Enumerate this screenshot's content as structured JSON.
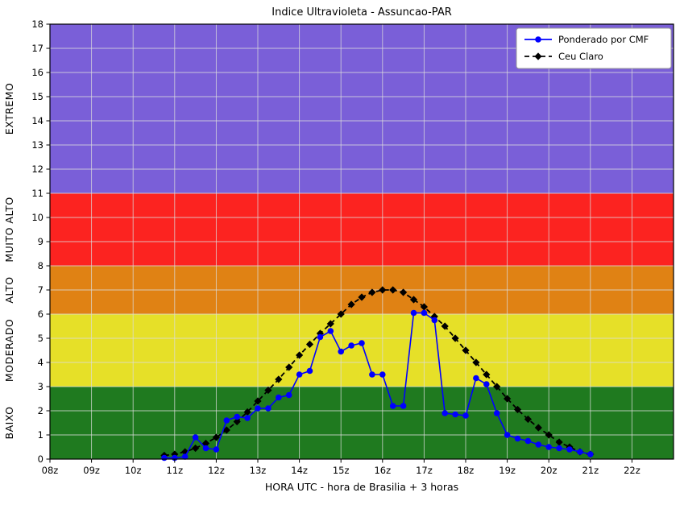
{
  "chart_data": {
    "type": "line",
    "title": "Indice Ultravioleta - Assuncao-PAR",
    "xlabel": "HORA UTC - hora de Brasilia + 3 horas",
    "ylabel": "",
    "xlim": [
      8,
      23
    ],
    "ylim": [
      0,
      18
    ],
    "grid": true,
    "grid_color": "#dcdcdc",
    "legend_position": "upper right",
    "x_ticks": [
      {
        "value": 8,
        "label": "08z"
      },
      {
        "value": 9,
        "label": "09z"
      },
      {
        "value": 10,
        "label": "10z"
      },
      {
        "value": 11,
        "label": "11z"
      },
      {
        "value": 12,
        "label": "12z"
      },
      {
        "value": 13,
        "label": "13z"
      },
      {
        "value": 14,
        "label": "14z"
      },
      {
        "value": 15,
        "label": "15z"
      },
      {
        "value": 16,
        "label": "16z"
      },
      {
        "value": 17,
        "label": "17z"
      },
      {
        "value": 18,
        "label": "18z"
      },
      {
        "value": 19,
        "label": "19z"
      },
      {
        "value": 20,
        "label": "20z"
      },
      {
        "value": 21,
        "label": "21z"
      },
      {
        "value": 22,
        "label": "22z"
      }
    ],
    "y_ticks": [
      0,
      1,
      2,
      3,
      4,
      5,
      6,
      7,
      8,
      9,
      10,
      11,
      12,
      13,
      14,
      15,
      16,
      17,
      18
    ],
    "bands": [
      {
        "label": "BAIXO",
        "from": 0,
        "to": 3,
        "color": "#1F7A1F",
        "label_color": "#1F7A1F"
      },
      {
        "label": "MODERADO",
        "from": 3,
        "to": 6,
        "color": "#E6E028",
        "label_color": "#BFBF00"
      },
      {
        "label": "ALTO",
        "from": 6,
        "to": 8,
        "color": "#E08214",
        "label_color": "#E08214"
      },
      {
        "label": "MUITO ALTO",
        "from": 8,
        "to": 11,
        "color": "#FC2320",
        "label_color": "#E60000"
      },
      {
        "label": "EXTREMO",
        "from": 11,
        "to": 18,
        "color": "#7A5FD8",
        "label_color": "#0000E6"
      }
    ],
    "series": [
      {
        "name": "Ponderado por CMF",
        "color": "#0000FF",
        "marker": "circle",
        "line_style": "solid",
        "x": [
          10.75,
          11.0,
          11.25,
          11.5,
          11.75,
          12.0,
          12.25,
          12.5,
          12.75,
          13.0,
          13.25,
          13.5,
          13.75,
          14.0,
          14.25,
          14.5,
          14.75,
          15.0,
          15.25,
          15.5,
          15.75,
          16.0,
          16.25,
          16.5,
          16.75,
          17.0,
          17.25,
          17.5,
          17.75,
          18.0,
          18.25,
          18.5,
          18.75,
          19.0,
          19.25,
          19.5,
          19.75,
          20.0,
          20.25,
          20.5,
          20.75,
          21.0
        ],
        "y": [
          0.05,
          0.05,
          0.1,
          0.9,
          0.45,
          0.4,
          1.6,
          1.75,
          1.7,
          2.1,
          2.1,
          2.55,
          2.65,
          3.5,
          3.65,
          5.05,
          5.3,
          4.45,
          4.7,
          4.8,
          3.5,
          3.5,
          2.2,
          2.2,
          6.05,
          6.05,
          5.75,
          1.9,
          1.85,
          1.8,
          3.35,
          3.1,
          1.9,
          1.0,
          0.85,
          0.75,
          0.6,
          0.5,
          0.45,
          0.4,
          0.3,
          0.2
        ]
      },
      {
        "name": "Ceu Claro",
        "color": "#000000",
        "marker": "diamond",
        "line_style": "dashed",
        "x": [
          10.75,
          11.0,
          11.25,
          11.5,
          11.75,
          12.0,
          12.25,
          12.5,
          12.75,
          13.0,
          13.25,
          13.5,
          13.75,
          14.0,
          14.25,
          14.5,
          14.75,
          15.0,
          15.25,
          15.5,
          15.75,
          16.0,
          16.25,
          16.5,
          16.75,
          17.0,
          17.25,
          17.5,
          17.75,
          18.0,
          18.25,
          18.5,
          18.75,
          19.0,
          19.25,
          19.5,
          19.75,
          20.0,
          20.25,
          20.5,
          20.75,
          21.0
        ],
        "y": [
          0.15,
          0.2,
          0.3,
          0.45,
          0.65,
          0.9,
          1.2,
          1.55,
          1.95,
          2.4,
          2.85,
          3.3,
          3.8,
          4.3,
          4.75,
          5.2,
          5.6,
          6.0,
          6.4,
          6.7,
          6.9,
          7.0,
          7.0,
          6.9,
          6.6,
          6.3,
          5.9,
          5.5,
          5.0,
          4.5,
          4.0,
          3.5,
          3.0,
          2.5,
          2.05,
          1.65,
          1.3,
          1.0,
          0.7,
          0.5,
          0.3,
          0.2
        ]
      }
    ]
  }
}
